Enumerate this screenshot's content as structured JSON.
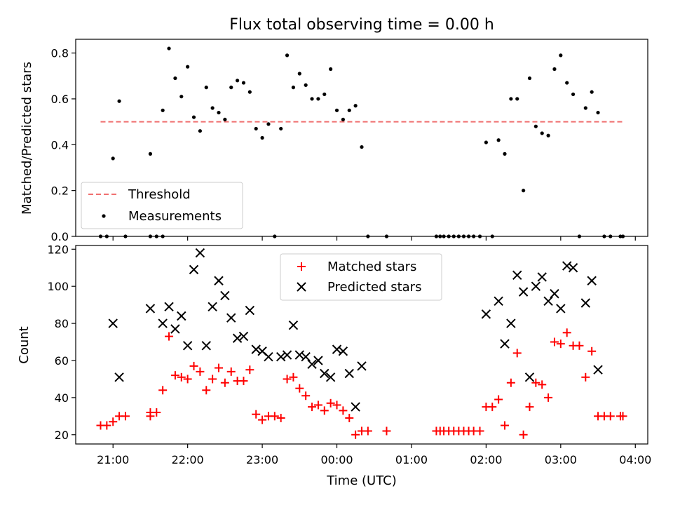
{
  "chart_data": [
    {
      "type": "scatter",
      "title": "Flux total observing time = 0.00 h",
      "xlabel": "",
      "ylabel": "Matched/Predicted stars",
      "ylim": [
        0,
        0.86
      ],
      "xlim": [
        "20:30",
        "04:10"
      ],
      "yticks": [
        "0.0",
        "0.2",
        "0.4",
        "0.6",
        "0.8"
      ],
      "legend_position": "lower-left",
      "threshold": {
        "label": "Threshold",
        "value": 0.5,
        "color": "#f07070",
        "x_range": [
          "20:50",
          "03:50"
        ]
      },
      "series": [
        {
          "name": "Measurements",
          "color": "#000000",
          "points": [
            [
              "20:50",
              0.0
            ],
            [
              "20:55",
              0.0
            ],
            [
              "21:00",
              0.34
            ],
            [
              "21:05",
              0.59
            ],
            [
              "21:10",
              0.0
            ],
            [
              "21:30",
              0.0
            ],
            [
              "21:30",
              0.36
            ],
            [
              "21:35",
              0.0
            ],
            [
              "21:40",
              0.0
            ],
            [
              "21:40",
              0.55
            ],
            [
              "21:45",
              0.82
            ],
            [
              "21:50",
              0.69
            ],
            [
              "21:55",
              0.61
            ],
            [
              "22:00",
              0.74
            ],
            [
              "22:05",
              0.52
            ],
            [
              "22:10",
              0.46
            ],
            [
              "22:15",
              0.65
            ],
            [
              "22:20",
              0.56
            ],
            [
              "22:25",
              0.54
            ],
            [
              "22:30",
              0.51
            ],
            [
              "22:35",
              0.65
            ],
            [
              "22:40",
              0.68
            ],
            [
              "22:45",
              0.67
            ],
            [
              "22:50",
              0.63
            ],
            [
              "22:55",
              0.47
            ],
            [
              "23:00",
              0.43
            ],
            [
              "23:05",
              0.49
            ],
            [
              "23:10",
              0.0
            ],
            [
              "23:15",
              0.47
            ],
            [
              "23:20",
              0.79
            ],
            [
              "23:25",
              0.65
            ],
            [
              "23:30",
              0.71
            ],
            [
              "23:35",
              0.66
            ],
            [
              "23:40",
              0.6
            ],
            [
              "23:45",
              0.6
            ],
            [
              "23:50",
              0.62
            ],
            [
              "23:55",
              0.73
            ],
            [
              "00:00",
              0.55
            ],
            [
              "00:05",
              0.51
            ],
            [
              "00:10",
              0.55
            ],
            [
              "00:15",
              0.57
            ],
            [
              "00:20",
              0.39
            ],
            [
              "00:25",
              0.0
            ],
            [
              "00:40",
              0.0
            ],
            [
              "01:20",
              0.0
            ],
            [
              "01:23",
              0.0
            ],
            [
              "01:26",
              0.0
            ],
            [
              "01:30",
              0.0
            ],
            [
              "01:34",
              0.0
            ],
            [
              "01:38",
              0.0
            ],
            [
              "01:42",
              0.0
            ],
            [
              "01:46",
              0.0
            ],
            [
              "01:50",
              0.0
            ],
            [
              "01:55",
              0.0
            ],
            [
              "02:00",
              0.41
            ],
            [
              "02:05",
              0.0
            ],
            [
              "02:10",
              0.42
            ],
            [
              "02:15",
              0.36
            ],
            [
              "02:20",
              0.6
            ],
            [
              "02:25",
              0.6
            ],
            [
              "02:30",
              0.2
            ],
            [
              "02:35",
              0.69
            ],
            [
              "02:40",
              0.48
            ],
            [
              "02:45",
              0.45
            ],
            [
              "02:50",
              0.44
            ],
            [
              "02:55",
              0.73
            ],
            [
              "03:00",
              0.79
            ],
            [
              "03:05",
              0.67
            ],
            [
              "03:10",
              0.62
            ],
            [
              "03:15",
              0.0
            ],
            [
              "03:20",
              0.56
            ],
            [
              "03:25",
              0.63
            ],
            [
              "03:30",
              0.54
            ],
            [
              "03:35",
              0.0
            ],
            [
              "03:40",
              0.0
            ],
            [
              "03:48",
              0.0
            ],
            [
              "03:50",
              0.0
            ]
          ]
        }
      ]
    },
    {
      "type": "scatter",
      "title": "",
      "xlabel": "Time (UTC)",
      "ylabel": "Count",
      "ylim": [
        15,
        122
      ],
      "xlim": [
        "20:30",
        "04:10"
      ],
      "yticks": [
        "20",
        "40",
        "60",
        "80",
        "100",
        "120"
      ],
      "xticks": [
        "21:00",
        "22:00",
        "23:00",
        "00:00",
        "01:00",
        "02:00",
        "03:00",
        "04:00"
      ],
      "legend_position": "upper-center",
      "series": [
        {
          "name": "Matched stars",
          "marker": "+",
          "color": "#ff0000",
          "points": [
            [
              "20:50",
              25
            ],
            [
              "20:55",
              25
            ],
            [
              "21:00",
              27
            ],
            [
              "21:05",
              30
            ],
            [
              "21:10",
              30
            ],
            [
              "21:30",
              30
            ],
            [
              "21:30",
              32
            ],
            [
              "21:35",
              32
            ],
            [
              "21:40",
              44
            ],
            [
              "21:45",
              73
            ],
            [
              "21:50",
              52
            ],
            [
              "21:55",
              51
            ],
            [
              "22:00",
              50
            ],
            [
              "22:05",
              57
            ],
            [
              "22:10",
              54
            ],
            [
              "22:15",
              44
            ],
            [
              "22:20",
              50
            ],
            [
              "22:25",
              56
            ],
            [
              "22:30",
              48
            ],
            [
              "22:35",
              54
            ],
            [
              "22:40",
              49
            ],
            [
              "22:45",
              49
            ],
            [
              "22:50",
              55
            ],
            [
              "22:55",
              31
            ],
            [
              "23:00",
              28
            ],
            [
              "23:05",
              30
            ],
            [
              "23:10",
              30
            ],
            [
              "23:15",
              29
            ],
            [
              "23:20",
              50
            ],
            [
              "23:25",
              51
            ],
            [
              "23:30",
              45
            ],
            [
              "23:35",
              41
            ],
            [
              "23:40",
              35
            ],
            [
              "23:45",
              36
            ],
            [
              "23:50",
              33
            ],
            [
              "23:55",
              37
            ],
            [
              "00:00",
              36
            ],
            [
              "00:05",
              33
            ],
            [
              "00:10",
              29
            ],
            [
              "00:15",
              20
            ],
            [
              "00:20",
              22
            ],
            [
              "00:25",
              22
            ],
            [
              "00:40",
              22
            ],
            [
              "01:20",
              22
            ],
            [
              "01:23",
              22
            ],
            [
              "01:26",
              22
            ],
            [
              "01:30",
              22
            ],
            [
              "01:34",
              22
            ],
            [
              "01:38",
              22
            ],
            [
              "01:42",
              22
            ],
            [
              "01:46",
              22
            ],
            [
              "01:50",
              22
            ],
            [
              "01:55",
              22
            ],
            [
              "02:00",
              35
            ],
            [
              "02:05",
              35
            ],
            [
              "02:10",
              39
            ],
            [
              "02:15",
              25
            ],
            [
              "02:20",
              48
            ],
            [
              "02:25",
              64
            ],
            [
              "02:30",
              20
            ],
            [
              "02:35",
              35
            ],
            [
              "02:40",
              48
            ],
            [
              "02:45",
              47
            ],
            [
              "02:50",
              40
            ],
            [
              "02:55",
              70
            ],
            [
              "03:00",
              69
            ],
            [
              "03:05",
              75
            ],
            [
              "03:10",
              68
            ],
            [
              "03:15",
              68
            ],
            [
              "03:20",
              51
            ],
            [
              "03:25",
              65
            ],
            [
              "03:30",
              30
            ],
            [
              "03:35",
              30
            ],
            [
              "03:40",
              30
            ],
            [
              "03:48",
              30
            ],
            [
              "03:50",
              30
            ]
          ]
        },
        {
          "name": "Predicted stars",
          "marker": "x",
          "color": "#000000",
          "points": [
            [
              "21:00",
              80
            ],
            [
              "21:05",
              51
            ],
            [
              "21:30",
              88
            ],
            [
              "21:40",
              80
            ],
            [
              "21:45",
              89
            ],
            [
              "21:50",
              77
            ],
            [
              "21:55",
              84
            ],
            [
              "22:00",
              68
            ],
            [
              "22:05",
              109
            ],
            [
              "22:10",
              118
            ],
            [
              "22:15",
              68
            ],
            [
              "22:20",
              89
            ],
            [
              "22:25",
              103
            ],
            [
              "22:30",
              95
            ],
            [
              "22:35",
              83
            ],
            [
              "22:40",
              72
            ],
            [
              "22:45",
              73
            ],
            [
              "22:50",
              87
            ],
            [
              "22:55",
              66
            ],
            [
              "23:00",
              65
            ],
            [
              "23:05",
              62
            ],
            [
              "23:15",
              62
            ],
            [
              "23:20",
              63
            ],
            [
              "23:25",
              79
            ],
            [
              "23:30",
              63
            ],
            [
              "23:35",
              62
            ],
            [
              "23:40",
              58
            ],
            [
              "23:45",
              60
            ],
            [
              "23:50",
              53
            ],
            [
              "23:55",
              51
            ],
            [
              "00:00",
              66
            ],
            [
              "00:05",
              65
            ],
            [
              "00:10",
              53
            ],
            [
              "00:15",
              35
            ],
            [
              "00:20",
              57
            ],
            [
              "02:00",
              85
            ],
            [
              "02:10",
              92
            ],
            [
              "02:15",
              69
            ],
            [
              "02:20",
              80
            ],
            [
              "02:25",
              106
            ],
            [
              "02:30",
              97
            ],
            [
              "02:35",
              51
            ],
            [
              "02:40",
              100
            ],
            [
              "02:45",
              105
            ],
            [
              "02:50",
              92
            ],
            [
              "02:55",
              96
            ],
            [
              "03:00",
              88
            ],
            [
              "03:05",
              111
            ],
            [
              "03:10",
              110
            ],
            [
              "03:20",
              91
            ],
            [
              "03:25",
              103
            ],
            [
              "03:30",
              55
            ]
          ]
        }
      ]
    }
  ]
}
